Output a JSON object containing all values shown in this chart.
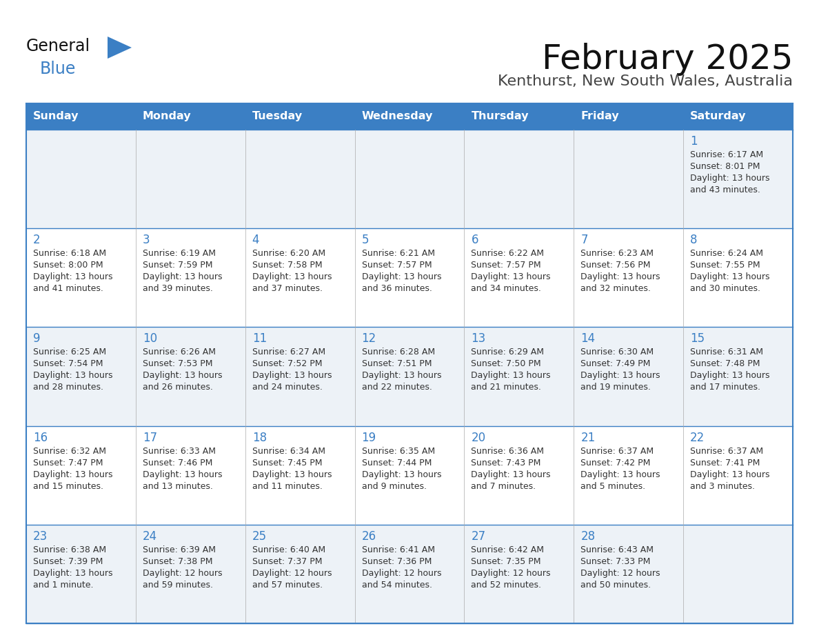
{
  "title": "February 2025",
  "subtitle": "Kenthurst, New South Wales, Australia",
  "days_of_week": [
    "Sunday",
    "Monday",
    "Tuesday",
    "Wednesday",
    "Thursday",
    "Friday",
    "Saturday"
  ],
  "header_bg": "#3b7fc4",
  "header_text": "#ffffff",
  "cell_bg_light": "#edf2f7",
  "cell_bg_white": "#ffffff",
  "border_color": "#3b7fc4",
  "day_num_color": "#3b7fc4",
  "cell_text_color": "#333333",
  "title_color": "#111111",
  "subtitle_color": "#444444",
  "logo_general_color": "#111111",
  "logo_blue_color": "#3b7fc4",
  "calendar_data": [
    [
      {
        "day": null,
        "info": null
      },
      {
        "day": null,
        "info": null
      },
      {
        "day": null,
        "info": null
      },
      {
        "day": null,
        "info": null
      },
      {
        "day": null,
        "info": null
      },
      {
        "day": null,
        "info": null
      },
      {
        "day": 1,
        "info": "Sunrise: 6:17 AM\nSunset: 8:01 PM\nDaylight: 13 hours\nand 43 minutes."
      }
    ],
    [
      {
        "day": 2,
        "info": "Sunrise: 6:18 AM\nSunset: 8:00 PM\nDaylight: 13 hours\nand 41 minutes."
      },
      {
        "day": 3,
        "info": "Sunrise: 6:19 AM\nSunset: 7:59 PM\nDaylight: 13 hours\nand 39 minutes."
      },
      {
        "day": 4,
        "info": "Sunrise: 6:20 AM\nSunset: 7:58 PM\nDaylight: 13 hours\nand 37 minutes."
      },
      {
        "day": 5,
        "info": "Sunrise: 6:21 AM\nSunset: 7:57 PM\nDaylight: 13 hours\nand 36 minutes."
      },
      {
        "day": 6,
        "info": "Sunrise: 6:22 AM\nSunset: 7:57 PM\nDaylight: 13 hours\nand 34 minutes."
      },
      {
        "day": 7,
        "info": "Sunrise: 6:23 AM\nSunset: 7:56 PM\nDaylight: 13 hours\nand 32 minutes."
      },
      {
        "day": 8,
        "info": "Sunrise: 6:24 AM\nSunset: 7:55 PM\nDaylight: 13 hours\nand 30 minutes."
      }
    ],
    [
      {
        "day": 9,
        "info": "Sunrise: 6:25 AM\nSunset: 7:54 PM\nDaylight: 13 hours\nand 28 minutes."
      },
      {
        "day": 10,
        "info": "Sunrise: 6:26 AM\nSunset: 7:53 PM\nDaylight: 13 hours\nand 26 minutes."
      },
      {
        "day": 11,
        "info": "Sunrise: 6:27 AM\nSunset: 7:52 PM\nDaylight: 13 hours\nand 24 minutes."
      },
      {
        "day": 12,
        "info": "Sunrise: 6:28 AM\nSunset: 7:51 PM\nDaylight: 13 hours\nand 22 minutes."
      },
      {
        "day": 13,
        "info": "Sunrise: 6:29 AM\nSunset: 7:50 PM\nDaylight: 13 hours\nand 21 minutes."
      },
      {
        "day": 14,
        "info": "Sunrise: 6:30 AM\nSunset: 7:49 PM\nDaylight: 13 hours\nand 19 minutes."
      },
      {
        "day": 15,
        "info": "Sunrise: 6:31 AM\nSunset: 7:48 PM\nDaylight: 13 hours\nand 17 minutes."
      }
    ],
    [
      {
        "day": 16,
        "info": "Sunrise: 6:32 AM\nSunset: 7:47 PM\nDaylight: 13 hours\nand 15 minutes."
      },
      {
        "day": 17,
        "info": "Sunrise: 6:33 AM\nSunset: 7:46 PM\nDaylight: 13 hours\nand 13 minutes."
      },
      {
        "day": 18,
        "info": "Sunrise: 6:34 AM\nSunset: 7:45 PM\nDaylight: 13 hours\nand 11 minutes."
      },
      {
        "day": 19,
        "info": "Sunrise: 6:35 AM\nSunset: 7:44 PM\nDaylight: 13 hours\nand 9 minutes."
      },
      {
        "day": 20,
        "info": "Sunrise: 6:36 AM\nSunset: 7:43 PM\nDaylight: 13 hours\nand 7 minutes."
      },
      {
        "day": 21,
        "info": "Sunrise: 6:37 AM\nSunset: 7:42 PM\nDaylight: 13 hours\nand 5 minutes."
      },
      {
        "day": 22,
        "info": "Sunrise: 6:37 AM\nSunset: 7:41 PM\nDaylight: 13 hours\nand 3 minutes."
      }
    ],
    [
      {
        "day": 23,
        "info": "Sunrise: 6:38 AM\nSunset: 7:39 PM\nDaylight: 13 hours\nand 1 minute."
      },
      {
        "day": 24,
        "info": "Sunrise: 6:39 AM\nSunset: 7:38 PM\nDaylight: 12 hours\nand 59 minutes."
      },
      {
        "day": 25,
        "info": "Sunrise: 6:40 AM\nSunset: 7:37 PM\nDaylight: 12 hours\nand 57 minutes."
      },
      {
        "day": 26,
        "info": "Sunrise: 6:41 AM\nSunset: 7:36 PM\nDaylight: 12 hours\nand 54 minutes."
      },
      {
        "day": 27,
        "info": "Sunrise: 6:42 AM\nSunset: 7:35 PM\nDaylight: 12 hours\nand 52 minutes."
      },
      {
        "day": 28,
        "info": "Sunrise: 6:43 AM\nSunset: 7:33 PM\nDaylight: 12 hours\nand 50 minutes."
      },
      {
        "day": null,
        "info": null
      }
    ]
  ]
}
